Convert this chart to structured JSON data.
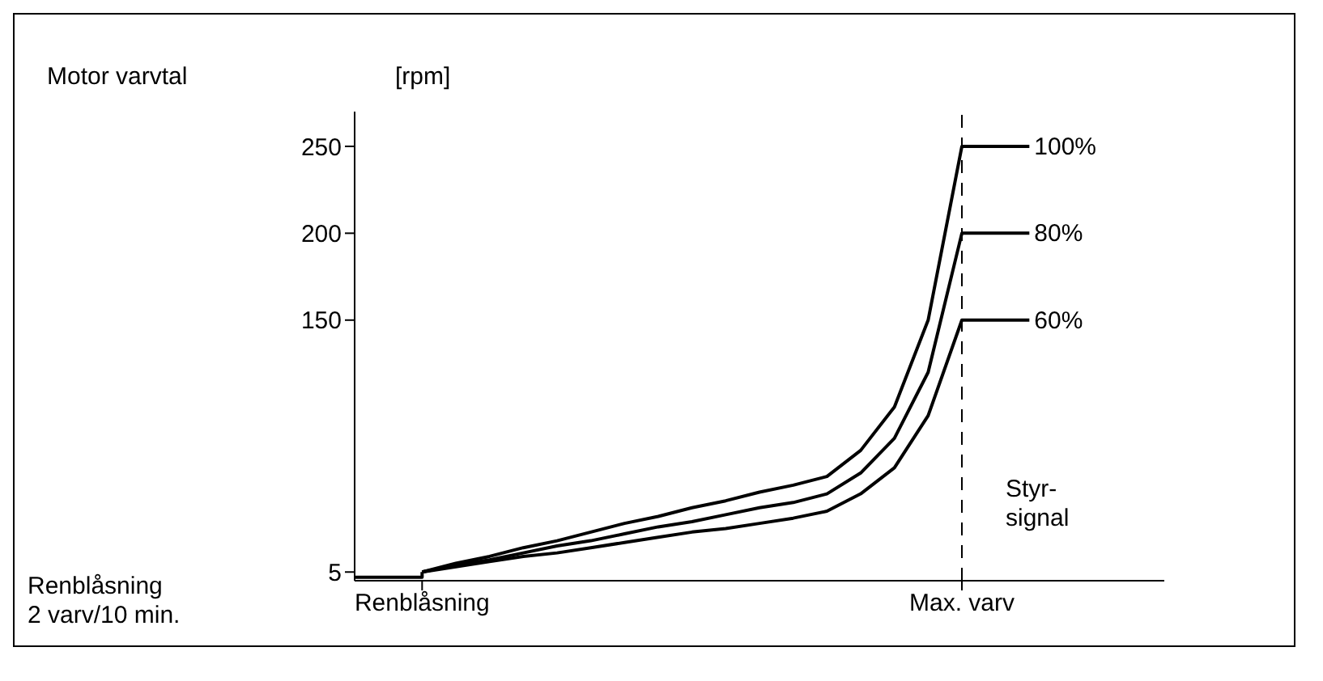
{
  "chart_data": {
    "type": "line",
    "ylabel": "Motor varvtal",
    "xlabel": "Styr-signal",
    "annotations": [
      "[rpm]",
      "Renblåsning\n2 varv/10 min."
    ],
    "categories": [
      null,
      null,
      "Renblåsning",
      null,
      null,
      null,
      null,
      null,
      null,
      null,
      null,
      null,
      null,
      null,
      null,
      null,
      null,
      null,
      "Max. varv",
      null,
      null,
      null,
      null,
      null,
      null
    ],
    "ylim": [
      0,
      270
    ],
    "yticks": [
      5,
      150,
      200,
      250
    ],
    "grid": false,
    "legend": false,
    "marker": "none",
    "line_style": "solid",
    "ref_lines": [
      {
        "axis": "x",
        "value": "Max. varv",
        "line_style": "dashed",
        "color": "#000000"
      }
    ],
    "series": [
      {
        "type": "step",
        "color": "#000000",
        "values": [
          2,
          2,
          5,
          null,
          null,
          null,
          null,
          null,
          null,
          null,
          null,
          null,
          null,
          null,
          null,
          null,
          null,
          null,
          null,
          null,
          null,
          null,
          null,
          null,
          null
        ]
      },
      {
        "name": "100%",
        "color": "#000000",
        "values": [
          null,
          null,
          5,
          10,
          14,
          19,
          23,
          28,
          33,
          37,
          42,
          46,
          51,
          55,
          60,
          75,
          100,
          150,
          250,
          250,
          250,
          null,
          null,
          null,
          null
        ]
      },
      {
        "name": "80%",
        "color": "#000000",
        "values": [
          null,
          null,
          5,
          9,
          12,
          16,
          20,
          23,
          27,
          31,
          34,
          38,
          42,
          45,
          50,
          62,
          82,
          120,
          200,
          200,
          200,
          null,
          null,
          null,
          null
        ]
      },
      {
        "name": "60%",
        "color": "#000000",
        "values": [
          null,
          null,
          5,
          8,
          11,
          14,
          16,
          19,
          22,
          25,
          28,
          30,
          33,
          36,
          40,
          50,
          65,
          95,
          150,
          150,
          150,
          null,
          null,
          null,
          null
        ]
      }
    ]
  }
}
